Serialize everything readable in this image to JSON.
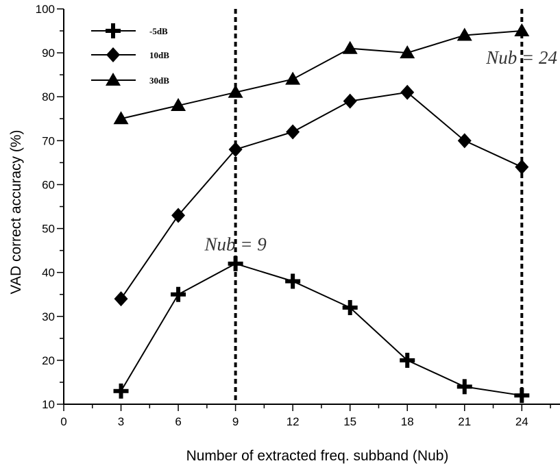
{
  "chart_data": {
    "type": "line",
    "xlabel": "Number of extracted freq. subband (Nub)",
    "ylabel": "VAD correct accuracy (%)",
    "xlim": [
      0,
      26
    ],
    "ylim": [
      10,
      100
    ],
    "x_ticks": [
      0,
      3,
      6,
      9,
      12,
      15,
      18,
      21,
      24
    ],
    "y_ticks": [
      10,
      20,
      30,
      40,
      50,
      60,
      70,
      80,
      90,
      100
    ],
    "x": [
      3,
      6,
      9,
      12,
      15,
      18,
      21,
      24
    ],
    "series": [
      {
        "name": "-5dB",
        "marker": "cross",
        "values": [
          13,
          35,
          42,
          38,
          32,
          20,
          14,
          12
        ]
      },
      {
        "name": "10dB",
        "marker": "diamond",
        "values": [
          34,
          53,
          68,
          72,
          79,
          81,
          70,
          64
        ]
      },
      {
        "name": "30dB",
        "marker": "triangle",
        "values": [
          75,
          78,
          81,
          84,
          91,
          90,
          94,
          95
        ]
      }
    ],
    "vlines": [
      9,
      24
    ],
    "annotations": [
      {
        "text": "Nub = 9",
        "x": 9,
        "y": 45
      },
      {
        "text": "Nub = 24",
        "x": 24,
        "y": 87.5
      }
    ],
    "legend_position": "top-left",
    "grid": false
  }
}
